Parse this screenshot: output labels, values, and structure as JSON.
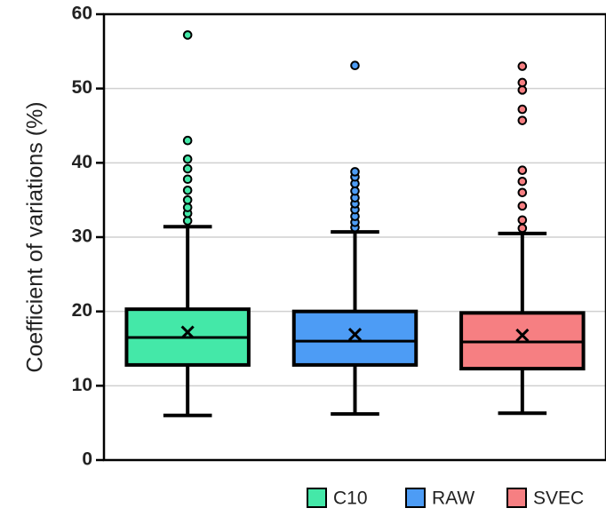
{
  "chart_data": {
    "type": "box",
    "title": "",
    "xlabel": "",
    "ylabel": "Coefficient of variations (%)",
    "ylim": [
      0,
      60
    ],
    "yticks": [
      0,
      10,
      20,
      30,
      40,
      50,
      60
    ],
    "grid": true,
    "legend_position": "bottom-right",
    "series": [
      {
        "name": "C10",
        "color": "#44e8a8",
        "min": 6,
        "q1": 12.8,
        "median": 16.5,
        "mean": 17.2,
        "q3": 20.3,
        "max": 31.4,
        "outliers": [
          32.2,
          33.2,
          34.0,
          35.0,
          36.3,
          37.8,
          39.2,
          40.5,
          43.0,
          57.2
        ]
      },
      {
        "name": "RAW",
        "color": "#4d9cf5",
        "min": 6.2,
        "q1": 12.8,
        "median": 16.0,
        "mean": 16.9,
        "q3": 20.0,
        "max": 30.7,
        "outliers": [
          31.3,
          32.0,
          32.8,
          33.7,
          34.5,
          35.3,
          36.2,
          37.2,
          38.1,
          38.8,
          53.1
        ]
      },
      {
        "name": "SVEC",
        "color": "#f67f82",
        "min": 6.3,
        "q1": 12.3,
        "median": 15.9,
        "mean": 16.8,
        "q3": 19.8,
        "max": 30.5,
        "outliers": [
          31.2,
          32.3,
          34.2,
          36.0,
          37.5,
          39.0,
          45.7,
          47.2,
          49.8,
          50.8,
          53.0
        ]
      }
    ]
  }
}
